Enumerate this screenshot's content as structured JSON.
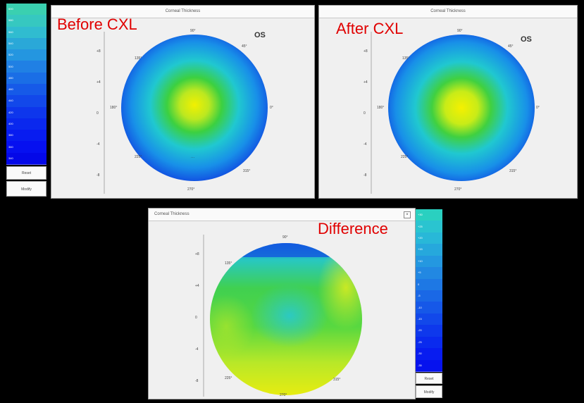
{
  "colors": {
    "background": "#000000",
    "panel": "#f0f0f0",
    "overlay_label": "#e00000",
    "map_center_yellow": "#f2f000",
    "map_green": "#3cd040",
    "map_cyan": "#20c8d0",
    "map_blue": "#1050e0"
  },
  "maps": {
    "before": {
      "window_title": "Corneal Thickness",
      "overlay_label": "Before CXL",
      "eye": "OS"
    },
    "after": {
      "window_title": "Corneal Thickness",
      "overlay_label": "After CXL",
      "eye": "OS"
    },
    "difference": {
      "window_title": "Corneal Thickness",
      "overlay_label": "Difference"
    }
  },
  "angles": {
    "top": "90°",
    "bottom": "270°",
    "left": "180°",
    "right": "0°",
    "upper_left": "135°",
    "upper_right": "45°",
    "lower_left": "225°",
    "lower_right": "315°"
  },
  "y_axis_ticks": [
    "+8",
    "+4",
    "0",
    "-4",
    "-8"
  ],
  "legends": {
    "left_scale": [
      "600",
      "580",
      "560",
      "540",
      "520",
      "500",
      "480",
      "460",
      "440",
      "420",
      "400",
      "380",
      "360",
      "340"
    ],
    "right_scale": [
      "+30",
      "+25",
      "+20",
      "+15",
      "+10",
      "+5",
      "0",
      "-5",
      "-10",
      "-15",
      "-20",
      "-25",
      "-30",
      "-35"
    ]
  },
  "controls": {
    "left_reset": "Reset",
    "left_modify": "Modify",
    "right_reset": "Reset",
    "right_modify": "Modify"
  },
  "icons": {
    "close": "close-icon"
  }
}
